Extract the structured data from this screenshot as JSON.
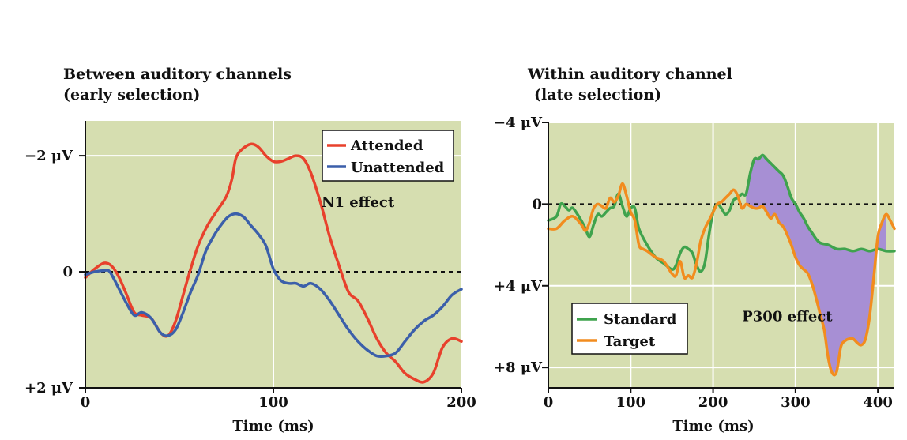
{
  "chart_data": [
    {
      "type": "line",
      "title": "Between auditory channels",
      "subtitle": "(early selection)",
      "xlabel": "Time (ms)",
      "ylabel": "",
      "xlim": [
        0,
        200
      ],
      "ylim": [
        -2.6,
        2
      ],
      "y_inverted": true,
      "grid": true,
      "legend_position": "top-right",
      "x_ticks": [
        {
          "value": 0,
          "label": "0"
        },
        {
          "value": 100,
          "label": "100"
        },
        {
          "value": 200,
          "label": "200"
        }
      ],
      "y_ticks": [
        {
          "value": -2,
          "label": "−2 μV"
        },
        {
          "value": 0,
          "label": "0"
        },
        {
          "value": 2,
          "label": "+2 μV"
        }
      ],
      "annotations": [
        {
          "text": "N1 effect",
          "x": 145,
          "y": -1.2
        }
      ],
      "series": [
        {
          "name": "Attended",
          "color": "#e8412c",
          "points": [
            [
              0,
              0.1
            ],
            [
              5,
              -0.05
            ],
            [
              10,
              -0.15
            ],
            [
              14,
              -0.1
            ],
            [
              18,
              0.1
            ],
            [
              22,
              0.4
            ],
            [
              26,
              0.7
            ],
            [
              30,
              0.75
            ],
            [
              35,
              0.8
            ],
            [
              40,
              1.05
            ],
            [
              44,
              1.1
            ],
            [
              48,
              0.85
            ],
            [
              52,
              0.4
            ],
            [
              56,
              -0.05
            ],
            [
              60,
              -0.45
            ],
            [
              65,
              -0.8
            ],
            [
              70,
              -1.05
            ],
            [
              75,
              -1.3
            ],
            [
              78,
              -1.6
            ],
            [
              80,
              -1.95
            ],
            [
              83,
              -2.1
            ],
            [
              88,
              -2.2
            ],
            [
              92,
              -2.15
            ],
            [
              96,
              -2.0
            ],
            [
              100,
              -1.9
            ],
            [
              104,
              -1.9
            ],
            [
              108,
              -1.95
            ],
            [
              112,
              -2.0
            ],
            [
              116,
              -1.95
            ],
            [
              120,
              -1.7
            ],
            [
              125,
              -1.2
            ],
            [
              130,
              -0.6
            ],
            [
              135,
              -0.1
            ],
            [
              140,
              0.35
            ],
            [
              145,
              0.5
            ],
            [
              150,
              0.8
            ],
            [
              155,
              1.15
            ],
            [
              160,
              1.4
            ],
            [
              165,
              1.55
            ],
            [
              170,
              1.75
            ],
            [
              175,
              1.85
            ],
            [
              180,
              1.9
            ],
            [
              185,
              1.75
            ],
            [
              190,
              1.3
            ],
            [
              195,
              1.15
            ],
            [
              200,
              1.2
            ]
          ]
        },
        {
          "name": "Unattended",
          "color": "#3b5faa",
          "points": [
            [
              0,
              0.05
            ],
            [
              5,
              0.0
            ],
            [
              10,
              -0.02
            ],
            [
              13,
              0.0
            ],
            [
              18,
              0.3
            ],
            [
              22,
              0.55
            ],
            [
              26,
              0.75
            ],
            [
              30,
              0.7
            ],
            [
              35,
              0.8
            ],
            [
              40,
              1.05
            ],
            [
              44,
              1.1
            ],
            [
              48,
              1.0
            ],
            [
              52,
              0.7
            ],
            [
              56,
              0.35
            ],
            [
              60,
              0.05
            ],
            [
              64,
              -0.35
            ],
            [
              68,
              -0.6
            ],
            [
              72,
              -0.8
            ],
            [
              76,
              -0.95
            ],
            [
              80,
              -1.0
            ],
            [
              84,
              -0.95
            ],
            [
              88,
              -0.8
            ],
            [
              92,
              -0.65
            ],
            [
              96,
              -0.45
            ],
            [
              100,
              -0.05
            ],
            [
              104,
              0.15
            ],
            [
              108,
              0.2
            ],
            [
              112,
              0.2
            ],
            [
              116,
              0.25
            ],
            [
              120,
              0.2
            ],
            [
              125,
              0.3
            ],
            [
              130,
              0.5
            ],
            [
              135,
              0.75
            ],
            [
              140,
              1.0
            ],
            [
              145,
              1.2
            ],
            [
              150,
              1.35
            ],
            [
              155,
              1.45
            ],
            [
              160,
              1.45
            ],
            [
              165,
              1.4
            ],
            [
              170,
              1.2
            ],
            [
              175,
              1.0
            ],
            [
              180,
              0.85
            ],
            [
              185,
              0.75
            ],
            [
              190,
              0.6
            ],
            [
              195,
              0.4
            ],
            [
              200,
              0.3
            ]
          ]
        }
      ]
    },
    {
      "type": "line",
      "title": "Within auditory channel",
      "subtitle": "(late selection)",
      "xlabel": "Time (ms)",
      "ylabel": "",
      "xlim": [
        0,
        420
      ],
      "ylim": [
        -4,
        9
      ],
      "y_inverted": true,
      "grid": true,
      "legend_position": "bottom-left",
      "x_ticks": [
        {
          "value": 0,
          "label": "0"
        },
        {
          "value": 100,
          "label": "100"
        },
        {
          "value": 200,
          "label": "200"
        },
        {
          "value": 300,
          "label": "300"
        },
        {
          "value": 400,
          "label": "400"
        }
      ],
      "y_ticks": [
        {
          "value": -4,
          "label": "−4 μV"
        },
        {
          "value": 0,
          "label": "0"
        },
        {
          "value": 4,
          "label": "+4 μV"
        },
        {
          "value": 8,
          "label": "+8 μV"
        }
      ],
      "annotations": [
        {
          "text": "P300 effect",
          "x": 290,
          "y": 5.5
        }
      ],
      "shaded_region": {
        "color": "#a78fd4",
        "between": [
          "Standard",
          "Target"
        ],
        "x_range": [
          240,
          410
        ]
      },
      "series": [
        {
          "name": "Standard",
          "color": "#3fa34d",
          "points": [
            [
              0,
              0.8
            ],
            [
              10,
              0.6
            ],
            [
              15,
              0.0
            ],
            [
              20,
              0.1
            ],
            [
              25,
              0.3
            ],
            [
              30,
              0.2
            ],
            [
              40,
              0.8
            ],
            [
              45,
              1.2
            ],
            [
              50,
              1.6
            ],
            [
              55,
              1.0
            ],
            [
              60,
              0.5
            ],
            [
              65,
              0.6
            ],
            [
              70,
              0.4
            ],
            [
              75,
              0.2
            ],
            [
              80,
              0.1
            ],
            [
              85,
              -0.5
            ],
            [
              90,
              0.1
            ],
            [
              95,
              0.6
            ],
            [
              100,
              0.2
            ],
            [
              105,
              0.2
            ],
            [
              110,
              1.2
            ],
            [
              120,
              2.0
            ],
            [
              130,
              2.6
            ],
            [
              140,
              2.9
            ],
            [
              150,
              3.2
            ],
            [
              155,
              3.0
            ],
            [
              160,
              2.4
            ],
            [
              165,
              2.1
            ],
            [
              170,
              2.2
            ],
            [
              175,
              2.4
            ],
            [
              180,
              3.0
            ],
            [
              185,
              3.3
            ],
            [
              190,
              2.9
            ],
            [
              195,
              1.5
            ],
            [
              200,
              0.4
            ],
            [
              205,
              0.0
            ],
            [
              210,
              0.2
            ],
            [
              215,
              0.5
            ],
            [
              220,
              0.3
            ],
            [
              225,
              -0.2
            ],
            [
              230,
              -0.3
            ],
            [
              235,
              -0.5
            ],
            [
              240,
              -0.5
            ],
            [
              245,
              -1.5
            ],
            [
              250,
              -2.2
            ],
            [
              255,
              -2.2
            ],
            [
              260,
              -2.4
            ],
            [
              265,
              -2.2
            ],
            [
              270,
              -2.0
            ],
            [
              275,
              -1.8
            ],
            [
              280,
              -1.6
            ],
            [
              285,
              -1.4
            ],
            [
              290,
              -0.9
            ],
            [
              295,
              -0.3
            ],
            [
              300,
              0.0
            ],
            [
              305,
              0.4
            ],
            [
              310,
              0.7
            ],
            [
              315,
              1.1
            ],
            [
              320,
              1.4
            ],
            [
              325,
              1.7
            ],
            [
              330,
              1.9
            ],
            [
              340,
              2.0
            ],
            [
              350,
              2.2
            ],
            [
              360,
              2.2
            ],
            [
              370,
              2.3
            ],
            [
              380,
              2.2
            ],
            [
              390,
              2.3
            ],
            [
              400,
              2.2
            ],
            [
              410,
              2.3
            ],
            [
              420,
              2.3
            ]
          ]
        },
        {
          "name": "Target",
          "color": "#f28c1e",
          "points": [
            [
              0,
              1.2
            ],
            [
              10,
              1.2
            ],
            [
              20,
              0.8
            ],
            [
              30,
              0.6
            ],
            [
              40,
              1.0
            ],
            [
              45,
              1.3
            ],
            [
              50,
              0.9
            ],
            [
              55,
              0.2
            ],
            [
              60,
              0.0
            ],
            [
              65,
              0.1
            ],
            [
              70,
              0.2
            ],
            [
              75,
              -0.3
            ],
            [
              80,
              -0.1
            ],
            [
              85,
              -0.4
            ],
            [
              90,
              -1.0
            ],
            [
              95,
              -0.4
            ],
            [
              100,
              0.4
            ],
            [
              105,
              0.8
            ],
            [
              110,
              2.0
            ],
            [
              115,
              2.2
            ],
            [
              120,
              2.3
            ],
            [
              130,
              2.6
            ],
            [
              140,
              2.8
            ],
            [
              150,
              3.4
            ],
            [
              155,
              3.5
            ],
            [
              160,
              2.8
            ],
            [
              165,
              3.6
            ],
            [
              170,
              3.5
            ],
            [
              175,
              3.6
            ],
            [
              180,
              2.9
            ],
            [
              185,
              1.8
            ],
            [
              190,
              1.2
            ],
            [
              195,
              0.8
            ],
            [
              200,
              0.4
            ],
            [
              205,
              0.0
            ],
            [
              210,
              -0.1
            ],
            [
              215,
              -0.3
            ],
            [
              220,
              -0.5
            ],
            [
              225,
              -0.7
            ],
            [
              230,
              -0.4
            ],
            [
              235,
              0.2
            ],
            [
              240,
              0.0
            ],
            [
              245,
              0.1
            ],
            [
              250,
              0.2
            ],
            [
              255,
              0.2
            ],
            [
              260,
              0.1
            ],
            [
              265,
              0.4
            ],
            [
              270,
              0.7
            ],
            [
              275,
              0.5
            ],
            [
              280,
              0.9
            ],
            [
              285,
              1.1
            ],
            [
              290,
              1.5
            ],
            [
              295,
              2.0
            ],
            [
              300,
              2.6
            ],
            [
              305,
              3.0
            ],
            [
              310,
              3.2
            ],
            [
              315,
              3.4
            ],
            [
              320,
              3.9
            ],
            [
              325,
              4.6
            ],
            [
              330,
              5.4
            ],
            [
              335,
              6.2
            ],
            [
              340,
              7.6
            ],
            [
              345,
              8.3
            ],
            [
              350,
              8.2
            ],
            [
              355,
              7.0
            ],
            [
              360,
              6.7
            ],
            [
              365,
              6.6
            ],
            [
              370,
              6.6
            ],
            [
              375,
              6.8
            ],
            [
              380,
              6.9
            ],
            [
              385,
              6.6
            ],
            [
              390,
              5.5
            ],
            [
              395,
              3.6
            ],
            [
              400,
              1.6
            ],
            [
              405,
              0.9
            ],
            [
              410,
              0.5
            ],
            [
              415,
              0.8
            ],
            [
              420,
              1.2
            ]
          ]
        }
      ]
    }
  ]
}
